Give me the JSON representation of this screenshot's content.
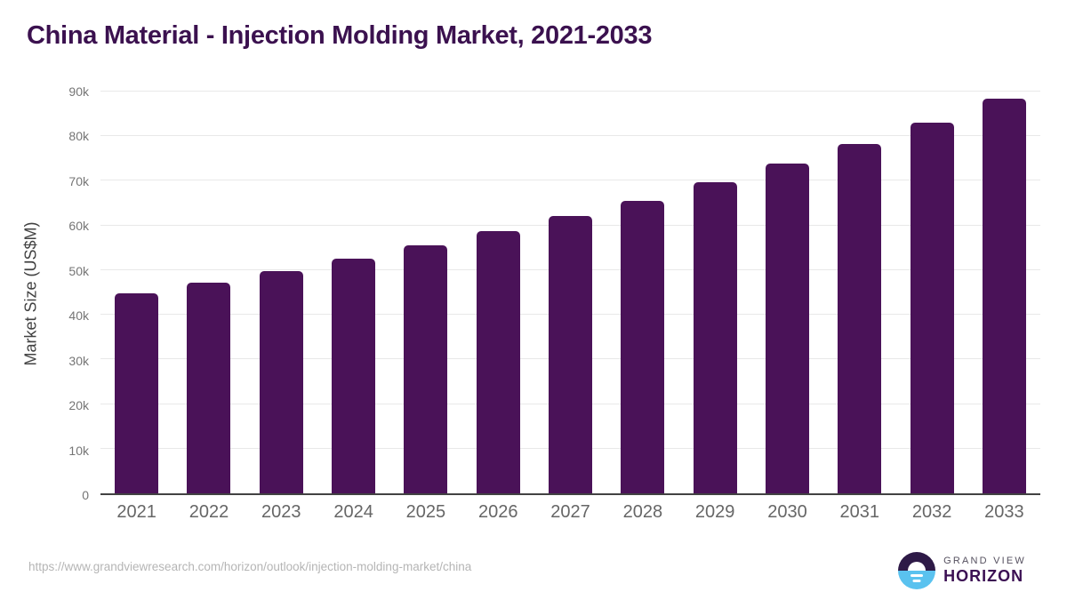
{
  "title": "China Material - Injection Molding Market, 2021-2033",
  "chart_data": {
    "type": "bar",
    "title": "China Material - Injection Molding Market, 2021-2033",
    "categories": [
      "2021",
      "2022",
      "2023",
      "2024",
      "2025",
      "2026",
      "2027",
      "2028",
      "2029",
      "2030",
      "2031",
      "2032",
      "2033"
    ],
    "values": [
      44800,
      47200,
      49800,
      52500,
      55500,
      58700,
      62100,
      65600,
      69600,
      73900,
      78200,
      83000,
      88400
    ],
    "xlabel": "",
    "ylabel": "Market Size (US$M)",
    "ylim": [
      0,
      90000
    ],
    "ytick_step": 10000,
    "ytick_labels": [
      "0",
      "10k",
      "20k",
      "30k",
      "40k",
      "50k",
      "60k",
      "70k",
      "80k",
      "90k"
    ],
    "grid": true,
    "legend": false,
    "bar_color": "#4a1258"
  },
  "footer": {
    "source_url": "https://www.grandviewresearch.com/horizon/outlook/injection-molding-market/china",
    "logo": {
      "line1": "GRAND VIEW",
      "line2": "HORIZON"
    }
  },
  "colors": {
    "bar": "#4a1258",
    "title": "#3b114f",
    "axis_line": "#424242",
    "gridline": "#e8e8e8",
    "tick_label": "#757575",
    "category_label": "#666666",
    "url": "#b5b5b5",
    "logo_dark": "#2e1a47",
    "logo_blue": "#5ac2ef",
    "logo_text_top": "#55505f",
    "logo_text_bottom": "#3b1053"
  }
}
